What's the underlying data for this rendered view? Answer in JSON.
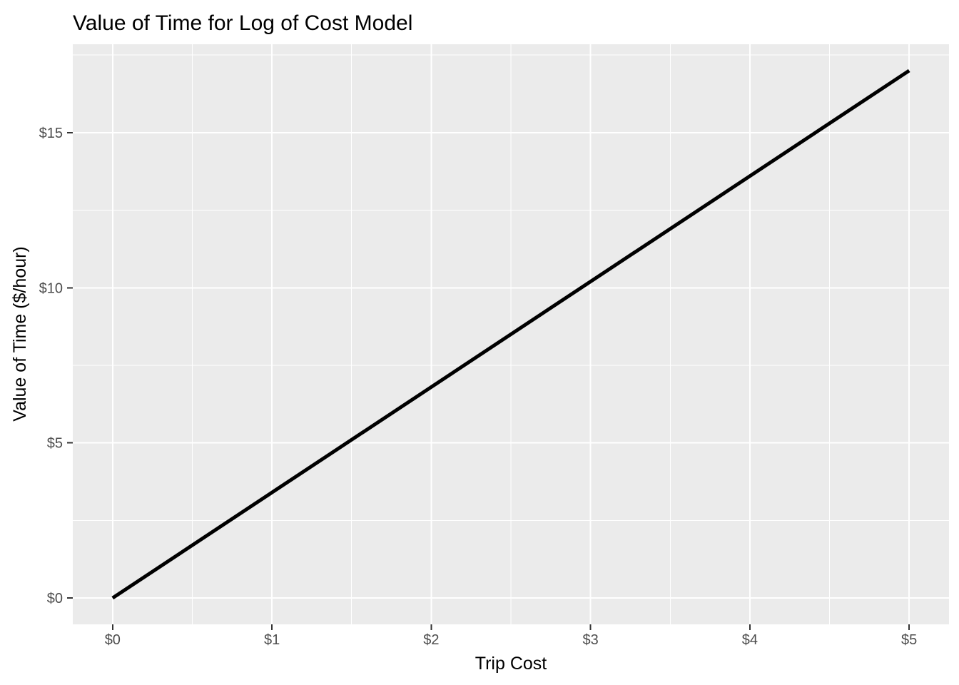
{
  "page": {
    "background": "#FFFFFF"
  },
  "chart_data": {
    "type": "line",
    "title": "Value of Time for Log of Cost Model",
    "xlabel": "Trip Cost",
    "ylabel": "Value of Time ($/hour)",
    "xlim": [
      -0.25,
      5.25
    ],
    "ylim": [
      -0.85,
      17.85
    ],
    "x_ticks": {
      "values": [
        0,
        1,
        2,
        3,
        4,
        5
      ],
      "labels": [
        "$0",
        "$1",
        "$2",
        "$3",
        "$4",
        "$5"
      ]
    },
    "y_ticks": {
      "values": [
        0,
        5,
        10,
        15
      ],
      "labels": [
        "$0",
        "$5",
        "$10",
        "$15"
      ]
    },
    "x_minor_gridlines": [
      0.5,
      1.5,
      2.5,
      3.5,
      4.5
    ],
    "y_minor_gridlines": [
      2.5,
      7.5,
      12.5,
      17.5
    ],
    "grid": true,
    "legend": "none",
    "series": [
      {
        "name": "Value of Time",
        "x": [
          0,
          5
        ],
        "y": [
          0,
          17
        ]
      }
    ],
    "theme": {
      "panel_background": "#EBEBEB",
      "major_gridline_color": "#FFFFFF",
      "minor_gridline_color": "#FFFFFF",
      "line_color": "#000000",
      "line_width": 5,
      "tick_mark_color": "#333333",
      "tick_label_color": "#4D4D4D",
      "title_color": "#000000",
      "axis_title_color": "#000000"
    }
  }
}
